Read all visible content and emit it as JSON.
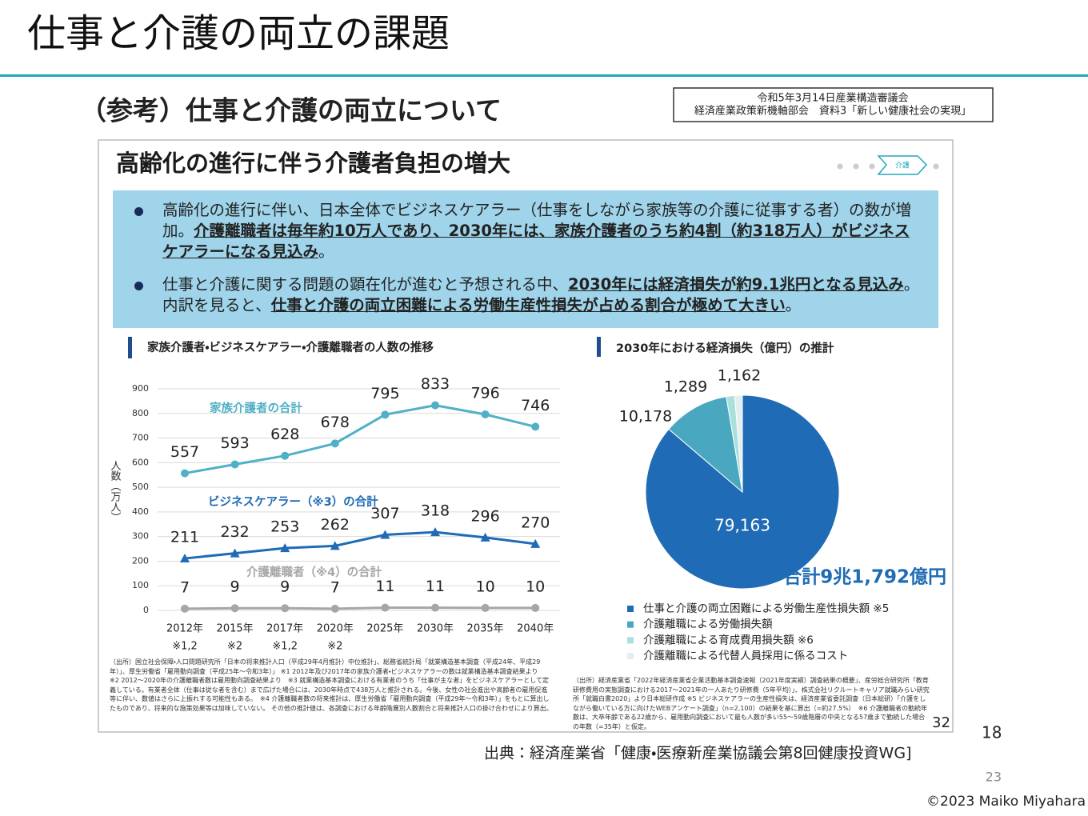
{
  "header": {
    "title": "仕事と介護の両立の課題"
  },
  "slide": {
    "subtitle": "（参考）仕事と介護の両立について",
    "source_box": [
      "令和5年3月14日産業構造審議会",
      "経済産業政策新機軸部会　資料3「新しい健康社会の実現」"
    ],
    "heading": "高齢化の進行に伴う介護者負担の増大",
    "nav_label": "介護",
    "bullets": [
      {
        "parts": [
          "高齢化の進行に伴い、日本全体でビジネスケアラー（仕事をしながら家族等の介護に従事する者）の数が増加。",
          "介護離職者は毎年約10万人であり、2030年には、家族介護者のうち約4割（約318万人）がビジネスケアラーになる見込み",
          "。"
        ]
      },
      {
        "parts": [
          "仕事と介護に関する問題の顕在化が進むと予想される中、",
          "2030年には経済損失が約9.1兆円となる見込み",
          "。内訳を見ると、",
          "仕事と介護の両立困難による労働生産性損失が占める割合が極めて大きい",
          "。"
        ]
      }
    ],
    "notes_left": "（出所）国立社会保障・人口問題研究所「日本の将来推計人口（平成29年4月推計）中位推計」、総務省統計局「就業構造基本調査（平成24年、平成29年）」、厚生労働省「雇用動向調査（平成25年～令和3年）」 ※1 2012年及び2017年の家族介護者・ビジネスケアラーの数は就業構造基本調査結果より　※2 2012～2020年の介護離職者数は雇用動向調査結果より　※3 就業構造基本調査における有業者のうち「仕事が主な者」をビジネスケアラーとして定義している。有業者全体（仕事は従な者を含む）まで広げた場合には、2030年時点で438万人と推計される。今後、女性の社会進出や高齢者の雇用促進等に伴い、数値はさらに上振れする可能性もある。　※4 介護離職者数の将来推計は、厚生労働省「雇用動向調査（平成29年～令和3年）」をもとに算出したものであり、将来的な施策効果等は加味していない。 その他の推計値は、各調査における年齢階層別人数割合と将来推計人口の掛け合わせにより算出。",
    "notes_right": "（出所）経済産業省「2022年経済産業省企業活動基本調査速報（2021年度実績）調査結果の概要」、産労総合研究所「教育研修費用の実態調査における2017～2021年の一人あたり研修費（5年平均）」、株式会社リクルートキャリア就職みらい研究所「就職白書2020」より日本総研作成 ※5 ビジネスケアラーの生産性損失は、経済産業省委託調査（日本総研）「介護をしながら働いている方に向けたWEBアンケート調査」（n=2,100）の結果を基に算出（=約27.5%）　※6 介護離職者の勤続年数は、大卒年齢である22歳から、雇用動向調査において最も人数が多い55～59歳階層の中央となる57歳まで勤続した場合の年数（=35年）と仮定。",
    "slide_page": "32"
  },
  "chart_data": [
    {
      "type": "line",
      "title": "家族介護者・ビジネスケアラー・介護離職者の人数の推移",
      "y_label": "人数（万人）",
      "categories": [
        "2012年",
        "2015年",
        "2017年",
        "2020年",
        "2025年",
        "2030年",
        "2035年",
        "2040年"
      ],
      "category_notes": [
        "※1,2",
        "※2",
        "※1,2",
        "※2",
        null,
        null,
        null,
        null
      ],
      "ylim": [
        0,
        900
      ],
      "yticks": [
        0,
        100,
        200,
        300,
        400,
        500,
        600,
        700,
        800,
        900
      ],
      "grid": true,
      "series": [
        {
          "name": "家族介護者の合計",
          "color": "#4fb0c6",
          "marker": "circle",
          "values": [
            557,
            593,
            628,
            678,
            795,
            833,
            796,
            746
          ]
        },
        {
          "name": "ビジネスケアラー（※3）の合計",
          "color": "#1f6bb5",
          "marker": "triangle",
          "values": [
            211,
            232,
            253,
            262,
            307,
            318,
            296,
            270
          ]
        },
        {
          "name": "介護離職者（※4）の合計",
          "color": "#a6a6a6",
          "marker": "circle",
          "values": [
            7,
            9,
            9,
            7,
            11,
            11,
            10,
            10
          ]
        }
      ]
    },
    {
      "type": "pie",
      "title": "2030年における経済損失（億円）の推計",
      "categories": [
        "仕事と介護の両立困難による労働生産性損失額 ※5",
        "介護離職による労働損失額",
        "介護離職による育成費用損失額 ※6",
        "介護離職による代替人員採用に係るコスト"
      ],
      "values": [
        79163,
        10178,
        1289,
        1162
      ],
      "value_labels": [
        "79,163",
        "10,178",
        "1,289",
        "1,162"
      ],
      "colors": [
        "#1f6bb5",
        "#49a8c0",
        "#a9dfdc",
        "#e4eef0"
      ],
      "total_label": "合計9兆1,792億円"
    }
  ],
  "footer": {
    "page_a": "18",
    "source": "出典：経済産業省「健康・医療新産業協議会第8回健康投資WG]",
    "page_b": "23",
    "copyright": "©2023 Maiko Miyahara"
  }
}
